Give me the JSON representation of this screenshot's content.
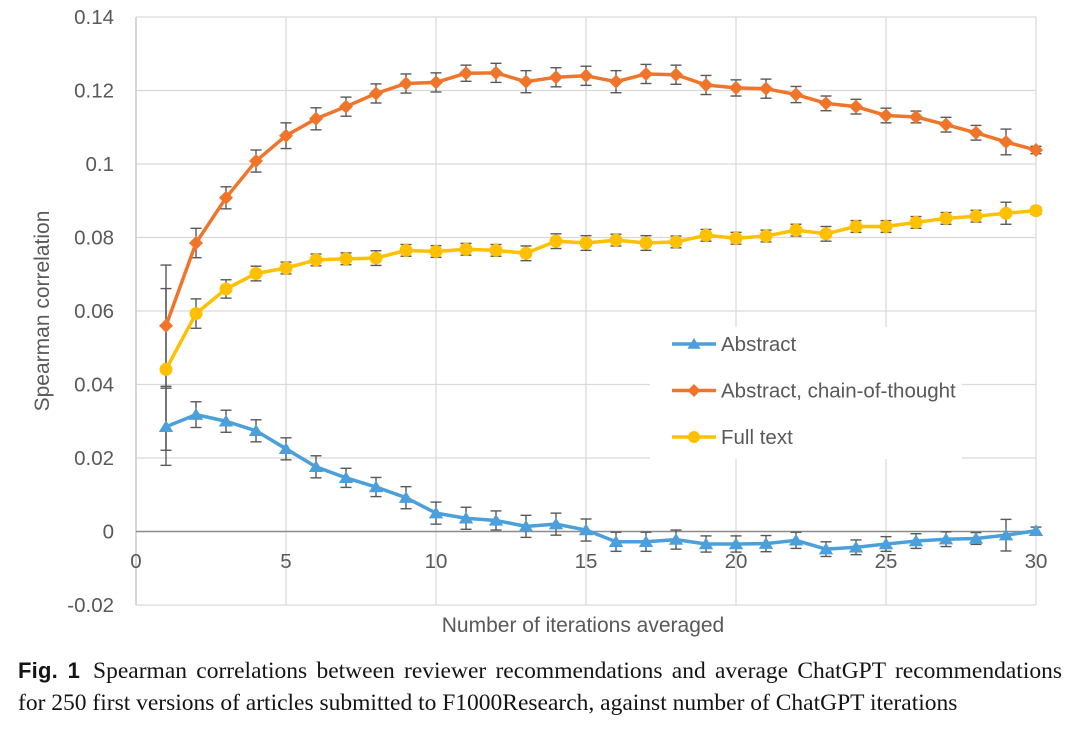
{
  "figure": {
    "caption": {
      "fig_label": "Fig. 1",
      "line1": "Spearman correlations between reviewer recommendations and average ChatGPT recommendations",
      "line2": "for 250 first versions of articles submitted to F1000Research, against number of ChatGPT iterations"
    }
  },
  "chart_data": {
    "type": "line",
    "title": "",
    "xlabel": "Number of iterations averaged",
    "ylabel": "Spearman correlation",
    "xlim": [
      0,
      30
    ],
    "ylim": [
      -0.02,
      0.14
    ],
    "grid": true,
    "legend_position": "inside-right",
    "x_ticks": [
      {
        "v": 0,
        "label": "0"
      },
      {
        "v": 5,
        "label": "5"
      },
      {
        "v": 10,
        "label": "10"
      },
      {
        "v": 15,
        "label": "15"
      },
      {
        "v": 20,
        "label": "20"
      },
      {
        "v": 25,
        "label": "25"
      },
      {
        "v": 30,
        "label": "30"
      }
    ],
    "y_ticks": [
      {
        "v": 0.14,
        "label": "0.14"
      },
      {
        "v": 0.12,
        "label": "0.12"
      },
      {
        "v": 0.1,
        "label": "0.1"
      },
      {
        "v": 0.08,
        "label": "0.08"
      },
      {
        "v": 0.06,
        "label": "0.06"
      },
      {
        "v": 0.04,
        "label": "0.04"
      },
      {
        "v": 0.02,
        "label": "0.02"
      },
      {
        "v": 0.0,
        "label": "0"
      },
      {
        "v": -0.02,
        "label": "-0.02"
      }
    ],
    "x": [
      1,
      2,
      3,
      4,
      5,
      6,
      7,
      8,
      9,
      10,
      11,
      12,
      13,
      14,
      15,
      16,
      17,
      18,
      19,
      20,
      21,
      22,
      23,
      24,
      25,
      26,
      27,
      28,
      29,
      30
    ],
    "series": [
      {
        "name": "Abstract",
        "marker": "triangle",
        "color": "#4BA0DB",
        "values": [
          0.0285,
          0.0318,
          0.03,
          0.0274,
          0.0225,
          0.0176,
          0.0146,
          0.0121,
          0.0092,
          0.005,
          0.0036,
          0.003,
          0.0014,
          0.002,
          0.0004,
          -0.0028,
          -0.0028,
          -0.0022,
          -0.0034,
          -0.0034,
          -0.0033,
          -0.0024,
          -0.0048,
          -0.0043,
          -0.0034,
          -0.0026,
          -0.0021,
          -0.0019,
          -0.001,
          0.0002
        ],
        "errors": [
          0.0105,
          0.0035,
          0.003,
          0.003,
          0.003,
          0.003,
          0.0026,
          0.0026,
          0.003,
          0.003,
          0.003,
          0.0026,
          0.003,
          0.003,
          0.003,
          0.0026,
          0.0026,
          0.0026,
          0.0022,
          0.0022,
          0.0022,
          0.0022,
          0.002,
          0.002,
          0.002,
          0.002,
          0.002,
          0.0016,
          0.0043,
          0.001
        ]
      },
      {
        "name": "Abstract, chain-of-thought",
        "marker": "diamond",
        "color": "#F0752B",
        "values": [
          0.056,
          0.0785,
          0.0908,
          0.1008,
          0.1077,
          0.1123,
          0.1156,
          0.1192,
          0.1219,
          0.1222,
          0.1247,
          0.1248,
          0.1224,
          0.1236,
          0.124,
          0.1224,
          0.1245,
          0.1243,
          0.1215,
          0.1207,
          0.1205,
          0.1189,
          0.1165,
          0.1156,
          0.1132,
          0.1128,
          0.1107,
          0.1085,
          0.106,
          0.1038
        ],
        "errors": [
          0.0165,
          0.004,
          0.003,
          0.003,
          0.0035,
          0.003,
          0.0026,
          0.0026,
          0.0026,
          0.0026,
          0.0022,
          0.0026,
          0.003,
          0.0026,
          0.0026,
          0.003,
          0.0026,
          0.0026,
          0.0026,
          0.0022,
          0.0026,
          0.0022,
          0.002,
          0.002,
          0.002,
          0.0016,
          0.002,
          0.002,
          0.0035,
          0.001
        ]
      },
      {
        "name": "Full text",
        "marker": "circle",
        "color": "#FFC000",
        "values": [
          0.0441,
          0.0593,
          0.066,
          0.0702,
          0.0717,
          0.0739,
          0.0742,
          0.0744,
          0.0765,
          0.0762,
          0.0768,
          0.0765,
          0.0757,
          0.079,
          0.0785,
          0.0793,
          0.0785,
          0.0788,
          0.0806,
          0.0798,
          0.0804,
          0.082,
          0.081,
          0.083,
          0.083,
          0.0841,
          0.0852,
          0.0858,
          0.0866,
          0.0873
        ],
        "errors": [
          0.022,
          0.004,
          0.0025,
          0.002,
          0.0016,
          0.0016,
          0.0016,
          0.002,
          0.0016,
          0.0016,
          0.0016,
          0.0016,
          0.002,
          0.002,
          0.002,
          0.0016,
          0.002,
          0.0016,
          0.0016,
          0.0016,
          0.0016,
          0.0016,
          0.002,
          0.0016,
          0.0016,
          0.0016,
          0.0016,
          0.0016,
          0.003,
          0.001
        ]
      }
    ],
    "colors": {
      "gridline": "#D9D9D9",
      "axis_line": "#C6C6C6",
      "zero_axis_line": "#8C8C8C",
      "error_bar": "#595959",
      "tick_text": "#595959",
      "axis_title_text": "#595959",
      "legend_text": "#595959",
      "plot_background": "#FFFFFF"
    }
  }
}
